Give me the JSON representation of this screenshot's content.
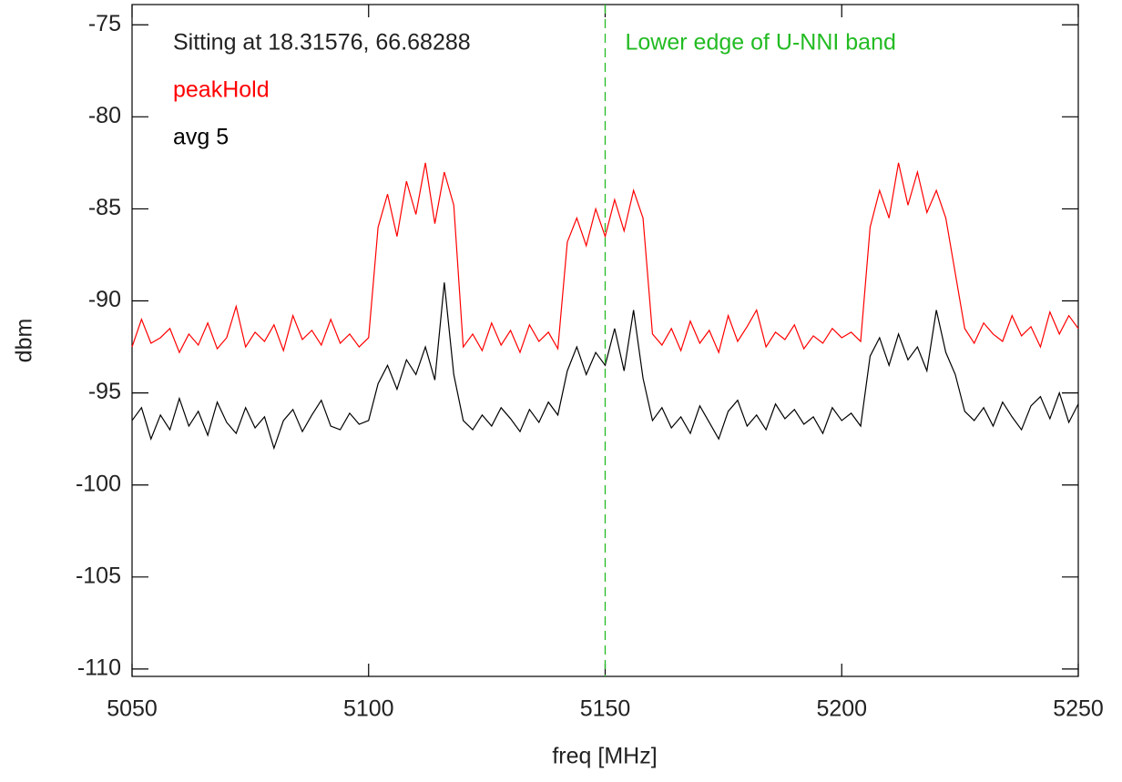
{
  "chart_data": {
    "type": "line",
    "x_label": "freq [MHz]",
    "y_label": "dbm",
    "annotation": "Sitting at 18.31576, 66.68288",
    "vline": {
      "x": 5150,
      "label": "Lower edge of U-NNI band",
      "color": "#22bb22"
    },
    "xlim": [
      5050,
      5250
    ],
    "xticks": [
      5050,
      5100,
      5150,
      5200,
      5250
    ],
    "ylim": [
      -110.4,
      -73.9
    ],
    "yticks": [
      -75,
      -80,
      -85,
      -90,
      -95,
      -100,
      -105,
      -110
    ],
    "x": [
      5050,
      5052,
      5054,
      5056,
      5058,
      5060,
      5062,
      5064,
      5066,
      5068,
      5070,
      5072,
      5074,
      5076,
      5078,
      5080,
      5082,
      5084,
      5086,
      5088,
      5090,
      5092,
      5094,
      5096,
      5098,
      5100,
      5102,
      5104,
      5106,
      5108,
      5110,
      5112,
      5114,
      5116,
      5118,
      5120,
      5122,
      5124,
      5126,
      5128,
      5130,
      5132,
      5134,
      5136,
      5138,
      5140,
      5142,
      5144,
      5146,
      5148,
      5150,
      5152,
      5154,
      5156,
      5158,
      5160,
      5162,
      5164,
      5166,
      5168,
      5170,
      5172,
      5174,
      5176,
      5178,
      5180,
      5182,
      5184,
      5186,
      5188,
      5190,
      5192,
      5194,
      5196,
      5198,
      5200,
      5202,
      5204,
      5206,
      5208,
      5210,
      5212,
      5214,
      5216,
      5218,
      5220,
      5222,
      5224,
      5226,
      5228,
      5230,
      5232,
      5234,
      5236,
      5238,
      5240,
      5242,
      5244,
      5246,
      5248,
      5250
    ],
    "series": [
      {
        "name": "peakHold",
        "color": "#ff0000",
        "values": [
          -92.5,
          -91,
          -92.3,
          -92.0,
          -91.5,
          -92.8,
          -91.8,
          -92.4,
          -91.2,
          -92.6,
          -92.0,
          -90.3,
          -92.5,
          -91.7,
          -92.2,
          -91.3,
          -92.7,
          -90.8,
          -92.1,
          -91.6,
          -92.4,
          -91.0,
          -92.3,
          -91.8,
          -92.5,
          -92.0,
          -86.0,
          -84.2,
          -86.5,
          -83.5,
          -85.3,
          -82.5,
          -85.8,
          -83.0,
          -84.8,
          -92.5,
          -91.8,
          -92.7,
          -91.2,
          -92.4,
          -91.6,
          -92.8,
          -91.3,
          -92.2,
          -91.7,
          -92.6,
          -86.8,
          -85.5,
          -87.0,
          -85.0,
          -86.5,
          -84.5,
          -86.2,
          -84.0,
          -85.5,
          -91.8,
          -92.4,
          -91.5,
          -92.7,
          -91.1,
          -92.3,
          -91.6,
          -92.8,
          -90.8,
          -92.2,
          -91.4,
          -90.5,
          -92.5,
          -91.7,
          -92.1,
          -91.3,
          -92.6,
          -91.9,
          -92.3,
          -91.5,
          -92.0,
          -91.7,
          -92.2,
          -86.0,
          -84.0,
          -85.5,
          -82.5,
          -84.8,
          -83.0,
          -85.2,
          -84.0,
          -85.5,
          -88.5,
          -91.5,
          -92.3,
          -91.2,
          -91.8,
          -92.2,
          -90.8,
          -91.9,
          -91.4,
          -92.5,
          -90.6,
          -91.8,
          -90.8,
          -91.5
        ]
      },
      {
        "name": "avg 5",
        "color": "#000000",
        "values": [
          -96.5,
          -95.8,
          -97.5,
          -96.2,
          -97.0,
          -95.3,
          -96.8,
          -96.0,
          -97.3,
          -95.5,
          -96.6,
          -97.2,
          -95.8,
          -96.9,
          -96.3,
          -98.0,
          -96.5,
          -95.9,
          -97.1,
          -96.2,
          -95.4,
          -96.8,
          -97.0,
          -96.1,
          -96.7,
          -96.5,
          -94.5,
          -93.5,
          -94.8,
          -93.2,
          -94.0,
          -92.5,
          -94.3,
          -89.0,
          -94.0,
          -96.5,
          -97.0,
          -96.2,
          -96.8,
          -95.8,
          -96.4,
          -97.1,
          -95.9,
          -96.6,
          -95.5,
          -96.2,
          -93.8,
          -92.5,
          -94.0,
          -92.8,
          -93.5,
          -91.5,
          -93.8,
          -90.5,
          -94.2,
          -96.5,
          -95.8,
          -96.9,
          -96.3,
          -97.2,
          -95.7,
          -96.6,
          -97.5,
          -96.0,
          -95.4,
          -96.8,
          -96.2,
          -97.0,
          -95.6,
          -96.4,
          -95.9,
          -96.7,
          -96.3,
          -97.2,
          -95.8,
          -96.5,
          -96.1,
          -96.8,
          -93.0,
          -92.0,
          -93.5,
          -91.8,
          -93.2,
          -92.5,
          -93.8,
          -90.5,
          -92.8,
          -94.0,
          -96.0,
          -96.5,
          -95.8,
          -96.8,
          -95.5,
          -96.3,
          -97.0,
          -95.7,
          -95.2,
          -96.4,
          -95.0,
          -96.6,
          -95.6
        ]
      }
    ]
  }
}
